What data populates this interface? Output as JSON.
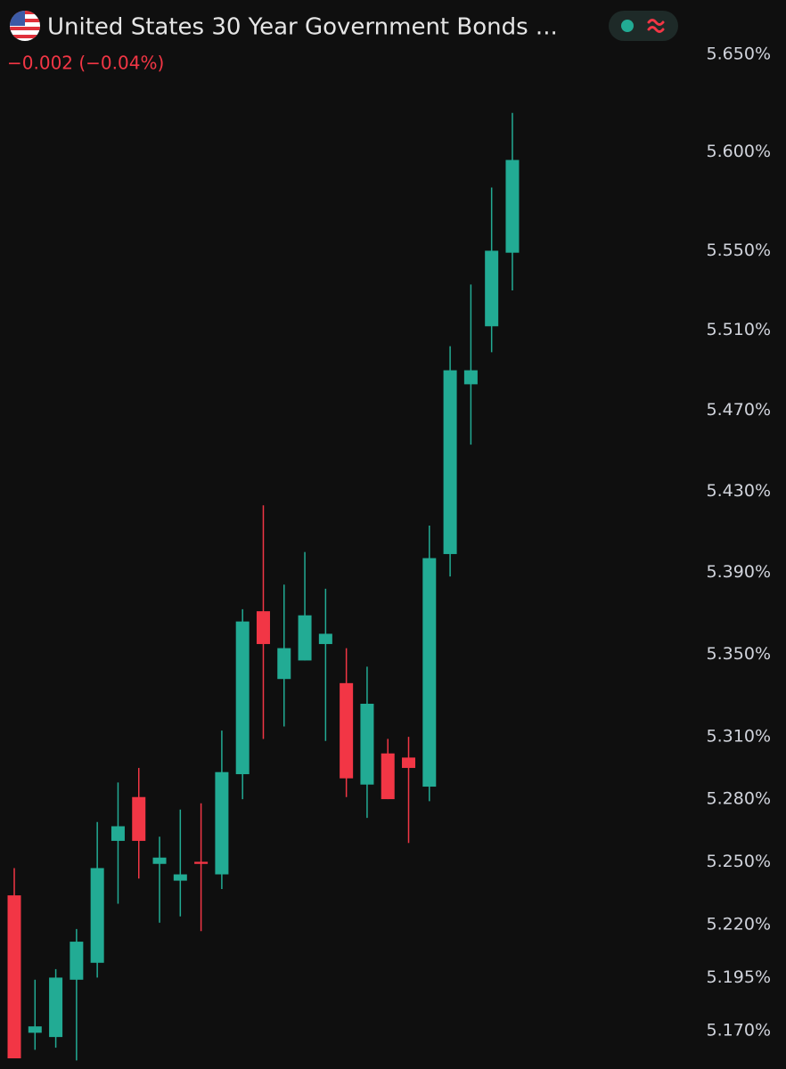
{
  "chart_data": {
    "type": "candlestick",
    "title": "United States 30 Year Government Bonds ...",
    "change": "−0.002 (−0.04%)",
    "log_scale": true,
    "ylim": [
      5.152,
      5.678
    ],
    "yticks": [
      {
        "value": 5.65,
        "label": "5.650%"
      },
      {
        "value": 5.6,
        "label": "5.600%"
      },
      {
        "value": 5.55,
        "label": "5.550%"
      },
      {
        "value": 5.51,
        "label": "5.510%"
      },
      {
        "value": 5.47,
        "label": "5.470%"
      },
      {
        "value": 5.43,
        "label": "5.430%"
      },
      {
        "value": 5.39,
        "label": "5.390%"
      },
      {
        "value": 5.35,
        "label": "5.350%"
      },
      {
        "value": 5.31,
        "label": "5.310%"
      },
      {
        "value": 5.28,
        "label": "5.280%"
      },
      {
        "value": 5.25,
        "label": "5.250%"
      },
      {
        "value": 5.22,
        "label": "5.220%"
      },
      {
        "value": 5.195,
        "label": "5.195%"
      },
      {
        "value": 5.17,
        "label": "5.170%"
      }
    ],
    "up_color": "#22ab94",
    "down_color": "#f23645",
    "open": [
      5.234,
      5.169,
      5.167,
      5.194,
      5.202,
      5.26,
      5.281,
      5.249,
      5.241,
      5.25,
      5.244,
      5.292,
      5.371,
      5.338,
      5.347,
      5.355,
      5.336,
      5.287,
      5.302,
      5.3,
      5.286,
      5.399,
      5.483,
      5.512,
      5.549
    ],
    "high": [
      5.247,
      5.194,
      5.199,
      5.218,
      5.269,
      5.288,
      5.295,
      5.262,
      5.275,
      5.278,
      5.313,
      5.372,
      5.423,
      5.384,
      5.4,
      5.382,
      5.353,
      5.344,
      5.309,
      5.31,
      5.413,
      5.502,
      5.533,
      5.582,
      5.62
    ],
    "low": [
      5.157,
      5.161,
      5.162,
      5.156,
      5.195,
      5.23,
      5.242,
      5.221,
      5.224,
      5.217,
      5.237,
      5.28,
      5.309,
      5.315,
      5.347,
      5.308,
      5.281,
      5.271,
      5.28,
      5.259,
      5.279,
      5.388,
      5.453,
      5.499,
      5.53
    ],
    "close": [
      5.157,
      5.172,
      5.195,
      5.212,
      5.247,
      5.267,
      5.26,
      5.252,
      5.244,
      5.249,
      5.293,
      5.366,
      5.355,
      5.353,
      5.369,
      5.36,
      5.29,
      5.326,
      5.28,
      5.295,
      5.397,
      5.49,
      5.49,
      5.55,
      5.596
    ]
  }
}
